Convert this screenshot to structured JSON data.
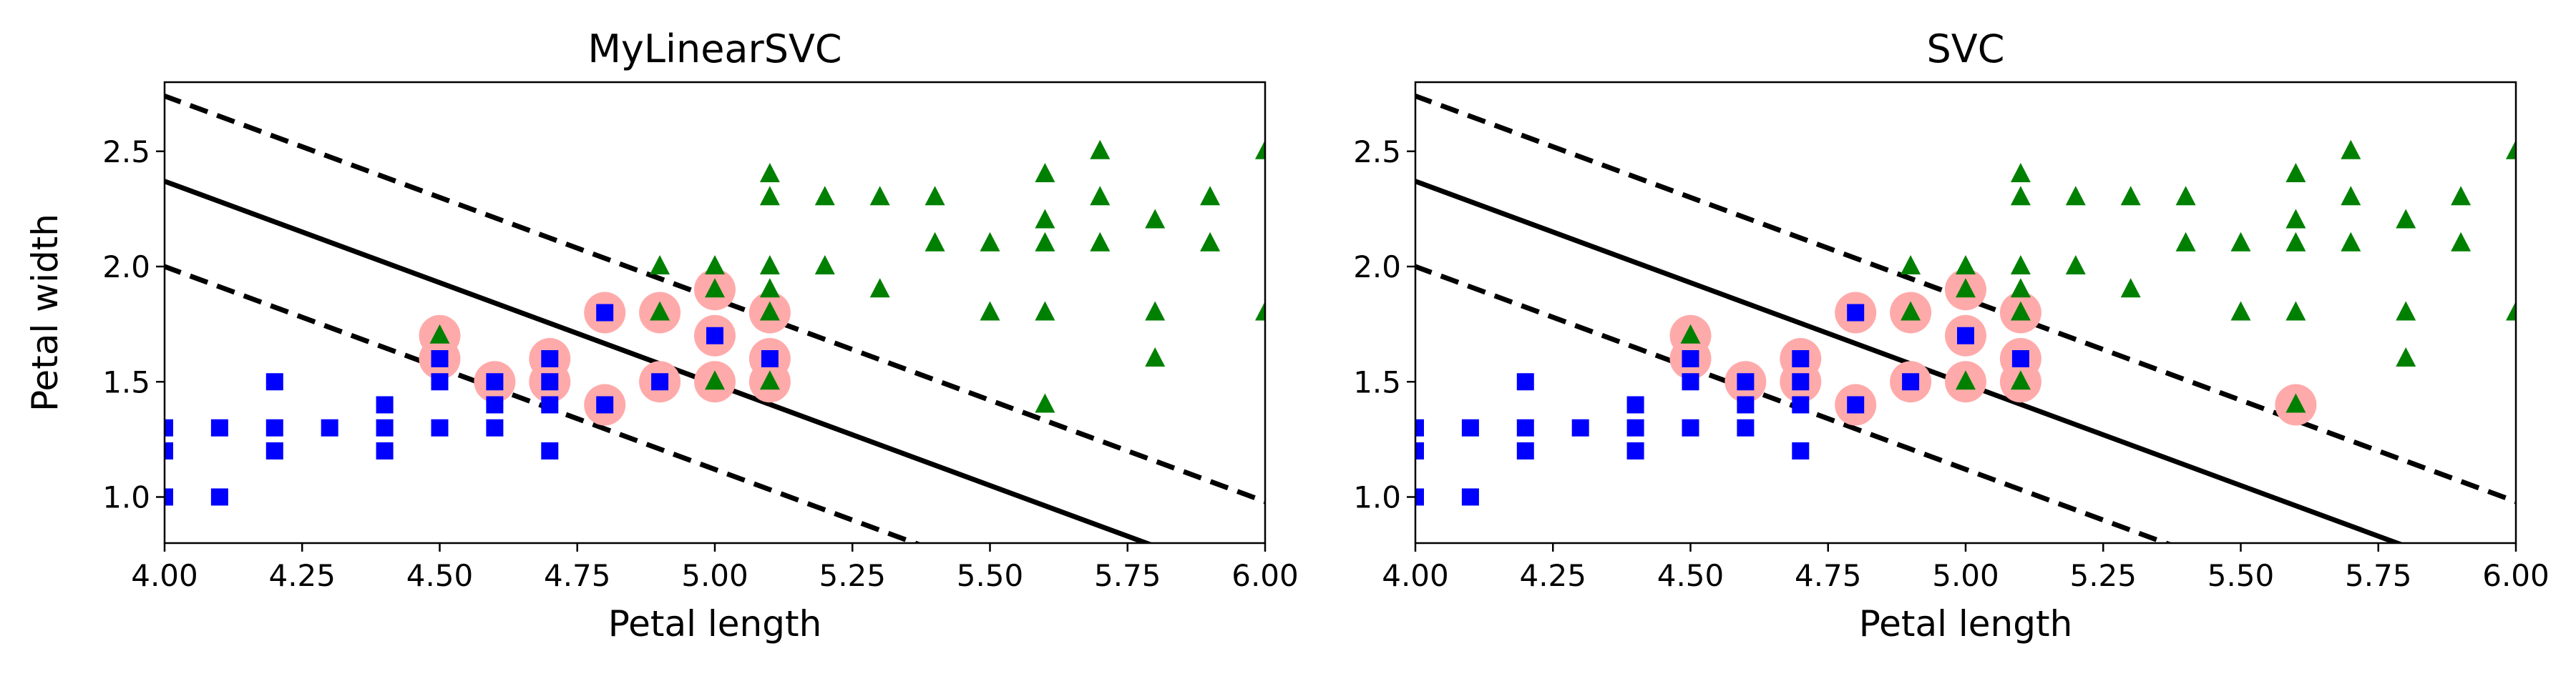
{
  "chart_data": [
    {
      "type": "scatter",
      "title": "MyLinearSVC",
      "xlabel": "Petal length",
      "ylabel": "Petal width",
      "xlim": [
        4.0,
        6.0
      ],
      "ylim": [
        0.8,
        2.8
      ],
      "xticks": [
        "4.00",
        "4.25",
        "4.50",
        "4.75",
        "5.00",
        "5.25",
        "5.50",
        "5.75",
        "6.00"
      ],
      "yticks": [
        "1.0",
        "1.5",
        "2.0",
        "2.5"
      ],
      "grid": false,
      "boundary": {
        "slope": -0.88,
        "intercept": 5.89
      },
      "margins": [
        {
          "slope": -0.88,
          "intercept": 6.26
        },
        {
          "slope": -0.88,
          "intercept": 5.52
        }
      ],
      "series": [
        {
          "color": "#0000ff",
          "marker": "square",
          "points": [
            [
              4.0,
              1.3
            ],
            [
              4.0,
              1.2
            ],
            [
              4.0,
              1.0
            ],
            [
              4.1,
              1.3
            ],
            [
              4.1,
              1.0
            ],
            [
              4.2,
              1.5
            ],
            [
              4.2,
              1.3
            ],
            [
              4.2,
              1.2
            ],
            [
              4.3,
              1.3
            ],
            [
              4.4,
              1.4
            ],
            [
              4.4,
              1.3
            ],
            [
              4.4,
              1.2
            ],
            [
              4.5,
              1.6
            ],
            [
              4.5,
              1.5
            ],
            [
              4.5,
              1.3
            ],
            [
              4.6,
              1.5
            ],
            [
              4.6,
              1.4
            ],
            [
              4.6,
              1.3
            ],
            [
              4.7,
              1.6
            ],
            [
              4.7,
              1.5
            ],
            [
              4.7,
              1.4
            ],
            [
              4.7,
              1.2
            ],
            [
              4.8,
              1.8
            ],
            [
              4.8,
              1.4
            ],
            [
              4.9,
              1.5
            ],
            [
              5.0,
              1.7
            ],
            [
              5.1,
              1.6
            ]
          ]
        },
        {
          "color": "#008000",
          "marker": "triangle",
          "points": [
            [
              4.5,
              1.7
            ],
            [
              4.9,
              2.0
            ],
            [
              4.9,
              1.8
            ],
            [
              5.0,
              2.0
            ],
            [
              5.0,
              1.9
            ],
            [
              5.0,
              1.5
            ],
            [
              5.1,
              2.4
            ],
            [
              5.1,
              2.3
            ],
            [
              5.1,
              2.0
            ],
            [
              5.1,
              1.9
            ],
            [
              5.1,
              1.8
            ],
            [
              5.1,
              1.5
            ],
            [
              5.2,
              2.3
            ],
            [
              5.2,
              2.0
            ],
            [
              5.3,
              2.3
            ],
            [
              5.3,
              1.9
            ],
            [
              5.4,
              2.3
            ],
            [
              5.4,
              2.1
            ],
            [
              5.5,
              2.1
            ],
            [
              5.5,
              1.8
            ],
            [
              5.6,
              2.4
            ],
            [
              5.6,
              2.2
            ],
            [
              5.6,
              2.1
            ],
            [
              5.6,
              1.8
            ],
            [
              5.6,
              1.4
            ],
            [
              5.7,
              2.5
            ],
            [
              5.7,
              2.3
            ],
            [
              5.7,
              2.1
            ],
            [
              5.8,
              2.2
            ],
            [
              5.8,
              1.8
            ],
            [
              5.8,
              1.6
            ],
            [
              5.9,
              2.3
            ],
            [
              5.9,
              2.1
            ],
            [
              6.0,
              2.5
            ],
            [
              6.0,
              1.8
            ]
          ]
        }
      ],
      "support_vectors": [
        [
          4.5,
          1.7
        ],
        [
          4.5,
          1.6
        ],
        [
          4.6,
          1.5
        ],
        [
          4.7,
          1.6
        ],
        [
          4.7,
          1.5
        ],
        [
          4.8,
          1.8
        ],
        [
          4.8,
          1.4
        ],
        [
          4.9,
          1.8
        ],
        [
          4.9,
          1.5
        ],
        [
          5.0,
          1.9
        ],
        [
          5.0,
          1.7
        ],
        [
          5.0,
          1.5
        ],
        [
          5.1,
          1.8
        ],
        [
          5.1,
          1.6
        ],
        [
          5.1,
          1.5
        ]
      ]
    },
    {
      "type": "scatter",
      "title": "SVC",
      "xlabel": "Petal length",
      "ylabel": "",
      "xlim": [
        4.0,
        6.0
      ],
      "ylim": [
        0.8,
        2.8
      ],
      "xticks": [
        "4.00",
        "4.25",
        "4.50",
        "4.75",
        "5.00",
        "5.25",
        "5.50",
        "5.75",
        "6.00"
      ],
      "yticks": [
        "1.0",
        "1.5",
        "2.0",
        "2.5"
      ],
      "grid": false,
      "boundary": {
        "slope": -0.88,
        "intercept": 5.89
      },
      "margins": [
        {
          "slope": -0.88,
          "intercept": 6.26
        },
        {
          "slope": -0.88,
          "intercept": 5.52
        }
      ],
      "series": [
        {
          "color": "#0000ff",
          "marker": "square",
          "points": [
            [
              4.0,
              1.3
            ],
            [
              4.0,
              1.2
            ],
            [
              4.0,
              1.0
            ],
            [
              4.1,
              1.3
            ],
            [
              4.1,
              1.0
            ],
            [
              4.2,
              1.5
            ],
            [
              4.2,
              1.3
            ],
            [
              4.2,
              1.2
            ],
            [
              4.3,
              1.3
            ],
            [
              4.4,
              1.4
            ],
            [
              4.4,
              1.3
            ],
            [
              4.4,
              1.2
            ],
            [
              4.5,
              1.6
            ],
            [
              4.5,
              1.5
            ],
            [
              4.5,
              1.3
            ],
            [
              4.6,
              1.5
            ],
            [
              4.6,
              1.4
            ],
            [
              4.6,
              1.3
            ],
            [
              4.7,
              1.6
            ],
            [
              4.7,
              1.5
            ],
            [
              4.7,
              1.4
            ],
            [
              4.7,
              1.2
            ],
            [
              4.8,
              1.8
            ],
            [
              4.8,
              1.4
            ],
            [
              4.9,
              1.5
            ],
            [
              5.0,
              1.7
            ],
            [
              5.1,
              1.6
            ]
          ]
        },
        {
          "color": "#008000",
          "marker": "triangle",
          "points": [
            [
              4.5,
              1.7
            ],
            [
              4.9,
              2.0
            ],
            [
              4.9,
              1.8
            ],
            [
              5.0,
              2.0
            ],
            [
              5.0,
              1.9
            ],
            [
              5.0,
              1.5
            ],
            [
              5.1,
              2.4
            ],
            [
              5.1,
              2.3
            ],
            [
              5.1,
              2.0
            ],
            [
              5.1,
              1.9
            ],
            [
              5.1,
              1.8
            ],
            [
              5.1,
              1.5
            ],
            [
              5.2,
              2.3
            ],
            [
              5.2,
              2.0
            ],
            [
              5.3,
              2.3
            ],
            [
              5.3,
              1.9
            ],
            [
              5.4,
              2.3
            ],
            [
              5.4,
              2.1
            ],
            [
              5.5,
              2.1
            ],
            [
              5.5,
              1.8
            ],
            [
              5.6,
              2.4
            ],
            [
              5.6,
              2.2
            ],
            [
              5.6,
              2.1
            ],
            [
              5.6,
              1.8
            ],
            [
              5.6,
              1.4
            ],
            [
              5.7,
              2.5
            ],
            [
              5.7,
              2.3
            ],
            [
              5.7,
              2.1
            ],
            [
              5.8,
              2.2
            ],
            [
              5.8,
              1.8
            ],
            [
              5.8,
              1.6
            ],
            [
              5.9,
              2.3
            ],
            [
              5.9,
              2.1
            ],
            [
              6.0,
              2.5
            ],
            [
              6.0,
              1.8
            ]
          ]
        }
      ],
      "support_vectors": [
        [
          4.5,
          1.7
        ],
        [
          4.5,
          1.6
        ],
        [
          4.6,
          1.5
        ],
        [
          4.7,
          1.6
        ],
        [
          4.7,
          1.5
        ],
        [
          4.8,
          1.8
        ],
        [
          4.8,
          1.4
        ],
        [
          4.9,
          1.8
        ],
        [
          4.9,
          1.5
        ],
        [
          5.0,
          1.9
        ],
        [
          5.0,
          1.7
        ],
        [
          5.0,
          1.5
        ],
        [
          5.1,
          1.8
        ],
        [
          5.1,
          1.6
        ],
        [
          5.1,
          1.5
        ],
        [
          5.6,
          1.4
        ]
      ]
    }
  ],
  "colors": {
    "support_vector_halo": "#ffaaaa",
    "lines": "#000000"
  }
}
